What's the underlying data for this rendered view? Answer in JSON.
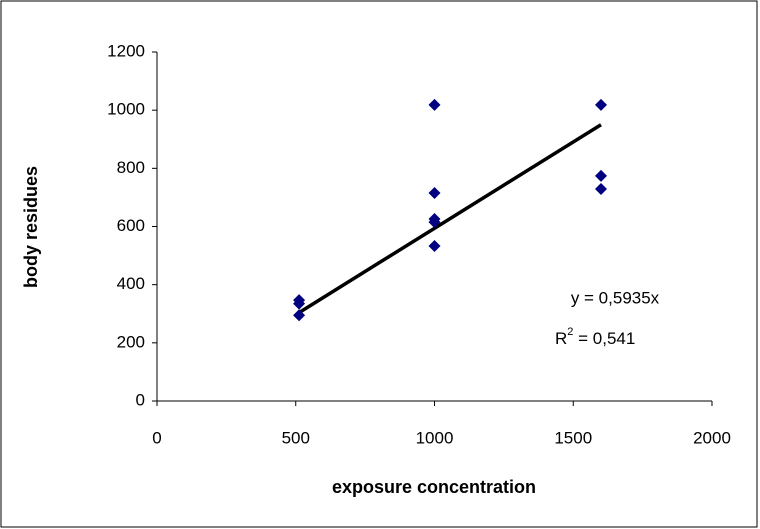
{
  "chart_data": {
    "type": "scatter",
    "x_label": "exposure concentration",
    "y_label": "body residues",
    "series": [
      {
        "color": "#000080",
        "x": [
          512,
          512,
          512,
          1000,
          1000,
          1000,
          1000,
          1000,
          1600,
          1600,
          1600
        ],
        "values": [
          347,
          335,
          295,
          1018,
          715,
          626,
          615,
          533,
          1018,
          774,
          729
        ]
      }
    ],
    "trendline": {
      "color": "#000000",
      "x": [
        512,
        1600
      ],
      "values": [
        304,
        950
      ]
    },
    "equation": "y = 0,5935x",
    "r_squared": {
      "base": "R",
      "sup": "2",
      "rest": " = 0,541"
    },
    "xlim": [
      0,
      2000
    ],
    "xticks": [
      0,
      500,
      1000,
      1500,
      2000
    ],
    "ylim": [
      0,
      1200
    ],
    "yticks": [
      0,
      200,
      400,
      600,
      800,
      1000,
      1200
    ],
    "grid": false
  }
}
